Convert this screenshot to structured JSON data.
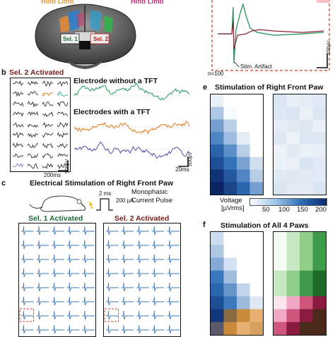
{
  "panel_a": {
    "hind_left": "Hind Limb",
    "hind_right": "Hind Limb",
    "sel1": "Sel. 1",
    "sel2": "Sel. 2"
  },
  "panel_top_right": {
    "n_label": "n=100",
    "artifact": "Stim. Artifact",
    "scale_v": "200µV"
  },
  "panel_b": {
    "letter": "b",
    "title": "Sel. 2 Activated",
    "scale_t": "200ms",
    "scale_v": "500µV",
    "trace1_label": "Electrode without a TFT",
    "trace2_label": "Electrodes with a TFT",
    "scale2_t": "20ms",
    "scale2_v": "500µV"
  },
  "panel_c": {
    "letter": "c",
    "title": "Electrical Stimulation of Right Front Paw",
    "pulse_ms": "2 ms",
    "pulse_ua": "200 µA",
    "pulse_label1": "Monophasic",
    "pulse_label2": "Current Pulse",
    "sel1": "Sel. 1 Activated",
    "sel2": "Sel. 2 Activated"
  },
  "panel_e": {
    "letter": "e",
    "title": "Stimulation of Right Front Paw",
    "voltage_label1": "Voltage",
    "voltage_label2": "[µVrms]",
    "ticks": [
      "50",
      "100",
      "150",
      "200"
    ]
  },
  "panel_f": {
    "letter": "f",
    "title": "Stimulation of All 4 Paws"
  },
  "colors": {
    "green": "#1f9e60",
    "orange": "#e07b1a",
    "purple": "#5a4aa8",
    "dark_red": "#7a1a1a",
    "dashed_red": "#d23a2a",
    "blue_trace": "#3a78b8"
  }
}
